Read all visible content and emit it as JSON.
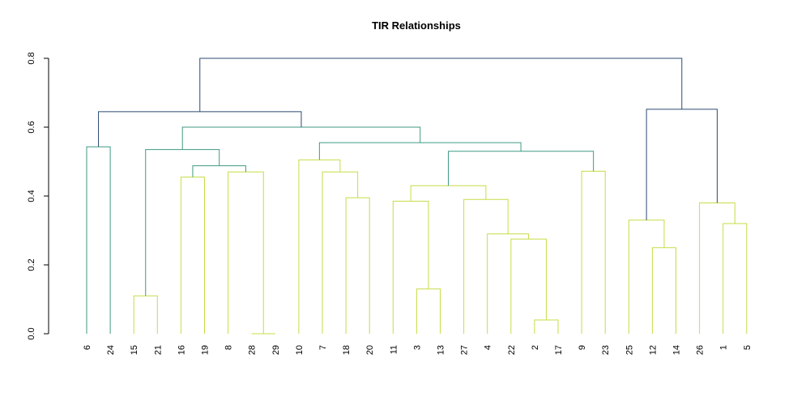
{
  "chart_data": {
    "type": "dendrogram",
    "title": "TIR Relationships",
    "xlabel": "",
    "ylabel": "",
    "ylim": [
      0,
      0.8
    ],
    "yticks": [
      "0.0",
      "0.2",
      "0.4",
      "0.6",
      "0.8"
    ],
    "grid": false,
    "leaves": [
      "6",
      "24",
      "15",
      "21",
      "16",
      "19",
      "8",
      "28",
      "29",
      "10",
      "7",
      "18",
      "20",
      "11",
      "3",
      "13",
      "27",
      "4",
      "22",
      "2",
      "17",
      "9",
      "23",
      "25",
      "12",
      "14",
      "26",
      "1",
      "5"
    ],
    "merges": [
      {
        "a": "28",
        "b": "29",
        "height": 0.0
      },
      {
        "a": "2",
        "b": "17",
        "height": 0.04
      },
      {
        "a": "15",
        "b": "21",
        "height": 0.11
      },
      {
        "a": "3",
        "b": "13",
        "height": 0.13
      },
      {
        "a": "12",
        "b": "14",
        "height": 0.25
      },
      {
        "a": "22",
        "b": "(2,17)",
        "height": 0.275
      },
      {
        "a": "4",
        "b": "(22,(2,17))",
        "height": 0.29
      },
      {
        "a": "1",
        "b": "5",
        "height": 0.32
      },
      {
        "a": "25",
        "b": "(12,14)",
        "height": 0.33
      },
      {
        "a": "26",
        "b": "(1,5)",
        "height": 0.38
      },
      {
        "a": "11",
        "b": "(3,13)",
        "height": 0.385
      },
      {
        "a": "27",
        "b": "(4,...)",
        "height": 0.39
      },
      {
        "a": "18",
        "b": "20",
        "height": 0.395
      },
      {
        "a": "(11,...)",
        "b": "(27,...)",
        "height": 0.43
      },
      {
        "a": "16",
        "b": "19",
        "height": 0.455
      },
      {
        "a": "8",
        "b": "(28,29)",
        "height": 0.47
      },
      {
        "a": "7",
        "b": "(18,20)",
        "height": 0.47
      },
      {
        "a": "9",
        "b": "23",
        "height": 0.472
      },
      {
        "a": "(16,19)",
        "b": "(8,(28,29))",
        "height": 0.488
      },
      {
        "a": "10",
        "b": "(7,(18,20))",
        "height": 0.505
      },
      {
        "a": "(11..22)",
        "b": "(9,23)",
        "height": 0.53
      },
      {
        "a": "(15,21)",
        "b": "(16..29)",
        "height": 0.535
      },
      {
        "a": "6",
        "b": "24",
        "height": 0.543
      },
      {
        "a": "(10..20)",
        "b": "(11..23)",
        "height": 0.555
      },
      {
        "a": "(15..29)",
        "b": "(10..23)",
        "height": 0.6
      },
      {
        "a": "(6,24)",
        "b": "(15..23)",
        "height": 0.645
      },
      {
        "a": "(25,12,14)",
        "b": "(26,1,5)",
        "height": 0.652
      },
      {
        "a": "(6..23)",
        "b": "(25..5)",
        "height": 0.8
      }
    ],
    "colors": {
      "low": "#c8dc46",
      "mid": "#3f9a82",
      "high": "#2c4b72"
    }
  }
}
